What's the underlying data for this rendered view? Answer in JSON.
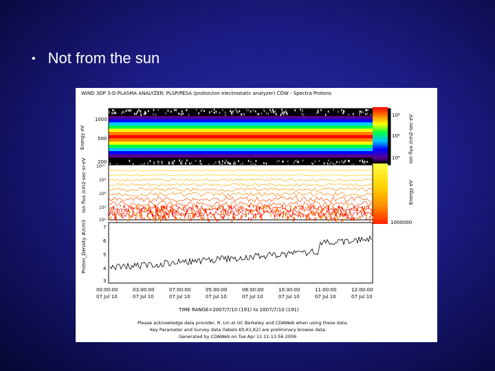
{
  "slide": {
    "bullet": "Not from the sun"
  },
  "figure": {
    "title": "WIND 3DP 3-D PLASMA ANALYZER: PLSP/PESA (proton/ion electrostatic analyzer) CDW - Spectra Protons",
    "panel1": {
      "ylabel": "Energy eV",
      "yticks": [
        "1000",
        "500",
        "200"
      ],
      "cbar_label": "Ion flux /cm2-sec-eV",
      "cbar_ticks": [
        "10⁸",
        "10⁶",
        "10⁴"
      ]
    },
    "panel2": {
      "ylabel": "Ion flux /cm2-sec-sr-eV",
      "yticks": [
        "10¹⁰",
        "10⁸",
        "10⁶",
        "10⁴",
        "10²"
      ],
      "right_label": "Energy eV",
      "right_tick": "1000000"
    },
    "panel3": {
      "ylabel": "Proton_Density #/cm3",
      "yticks": [
        "7",
        "6",
        "5",
        "4",
        "3"
      ]
    },
    "time_ticks": [
      {
        "time": "00:00:00",
        "date": "07 Jul 10"
      },
      {
        "time": "03:00:00",
        "date": "07 Jul 10"
      },
      {
        "time": "07:00:00",
        "date": "07 Jul 10"
      },
      {
        "time": "05:00:00",
        "date": "07 Jul 10"
      },
      {
        "time": "08:00:00",
        "date": "07 Jul 10"
      },
      {
        "time": "10:30:00",
        "date": "07 Jul 10"
      },
      {
        "time": "11:00:00",
        "date": "07 Jul 10"
      },
      {
        "time": "12:00:00",
        "date": "07 Jul 10"
      }
    ],
    "time_range": "TIME RANGE=2007/7/10 (191) to 2007/7/10 (191)",
    "footer": [
      "Please acknowledge data provider, R. Lin at UC Berkeley and CDAWeb when using these data.",
      "Key Parameter and Survey data (labels K0,K1,K2) are preliminary browse data.",
      "Generated by CDAWeb on Tue Apr 11 11:13:56 2006"
    ],
    "colors": {
      "spectrogram": [
        "#000000",
        "#5a0090",
        "#0000ff",
        "#00c8ff",
        "#00ff40",
        "#ffff00",
        "#ff8000",
        "#ff0000"
      ],
      "line_palette": [
        "#ffd000",
        "#ffb000",
        "#ff8800",
        "#ff5000",
        "#ff0000"
      ]
    }
  }
}
